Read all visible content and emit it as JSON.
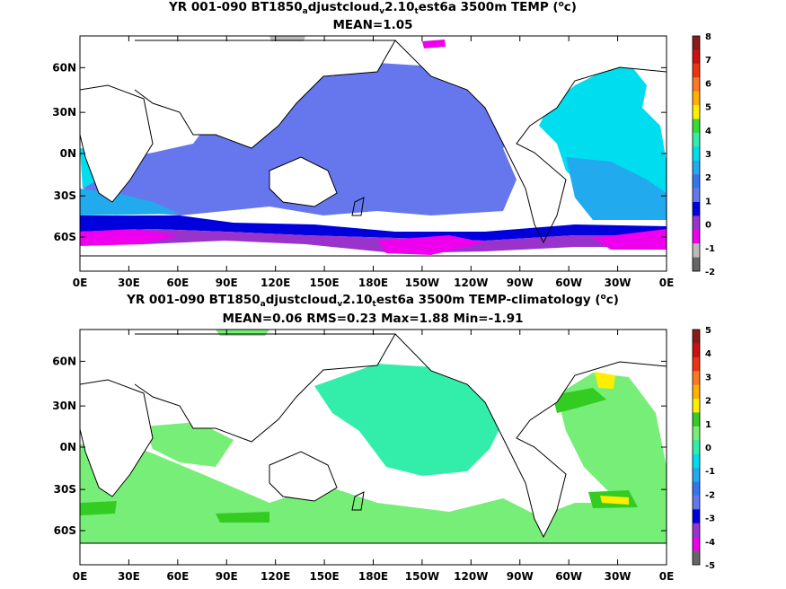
{
  "panels": [
    {
      "title_parts": [
        "YR 001-090 BT1850",
        "a",
        "djustcloud",
        "v",
        "2.10",
        "t",
        "est6a 3500m TEMP (",
        "o",
        "c)"
      ],
      "stats": "MEAN=1.05",
      "colorbar_labels": [
        "8",
        "7",
        "6",
        "5",
        "4",
        "3",
        "2",
        "1",
        "0",
        "-1",
        "-2"
      ],
      "colorbar_colors": [
        "#8b1a1a",
        "#cc1111",
        "#ee3311",
        "#ff7722",
        "#ffb000",
        "#ffee00",
        "#33dd33",
        "#33eeaa",
        "#00ddee",
        "#22aaee",
        "#3377ee",
        "#6677ee",
        "#0000dd",
        "#9933cc",
        "#ee00ee",
        "#bbbbbb",
        "#666666"
      ]
    },
    {
      "title_parts": [
        "YR 001-090 BT1850",
        "a",
        "djustcloud",
        "v",
        "2.10",
        "t",
        "est6a 3500m TEMP-climatology (",
        "o",
        "c)"
      ],
      "stats": "MEAN=0.06   RMS=0.23   Max=1.88   Min=-1.91",
      "colorbar_labels": [
        "5",
        "4",
        "3",
        "2",
        "1",
        "0",
        "-1",
        "-2",
        "-3",
        "-4",
        "-5"
      ],
      "colorbar_colors": [
        "#8b1a1a",
        "#cc1111",
        "#ee3311",
        "#ff7722",
        "#ffb000",
        "#ffee00",
        "#33cc22",
        "#77ee77",
        "#33eeaa",
        "#00ddee",
        "#22aaee",
        "#3377ee",
        "#6677ee",
        "#0000dd",
        "#9933cc",
        "#ee00ee",
        "#666666"
      ]
    }
  ],
  "axes": {
    "x_ticks": [
      "0E",
      "30E",
      "60E",
      "90E",
      "120E",
      "150E",
      "180E",
      "150W",
      "120W",
      "90W",
      "60W",
      "30W",
      "0E"
    ],
    "y_ticks": [
      "60N",
      "30N",
      "0N",
      "30S",
      "60S"
    ]
  },
  "colors": {
    "land": "#ffffff",
    "coast": "#000000",
    "top_main_ocean": "#6677ee",
    "top_atlantic": "#00ddee",
    "top_mid_blue": "#22aaee",
    "top_southern": "#0000dd",
    "top_purple": "#9933cc",
    "top_magenta": "#ee00ee",
    "bottom_main": "#33eeaa",
    "bottom_light_green": "#77ee77",
    "bottom_green": "#33cc22",
    "bottom_yellow": "#ffee00"
  }
}
